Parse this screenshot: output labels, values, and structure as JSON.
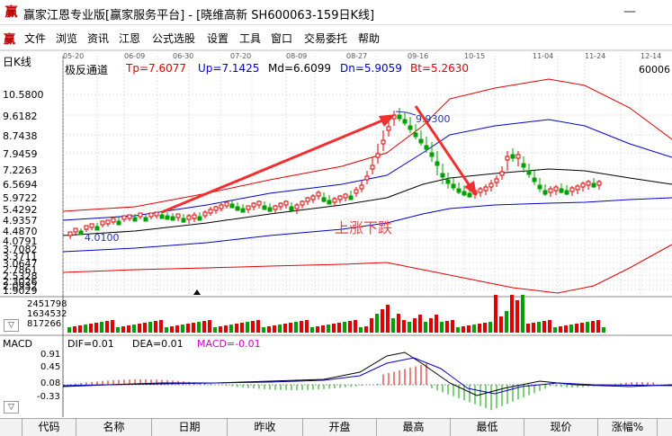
{
  "window": {
    "title": "赢家江恩专业版[赢家服务平台] - [晓维高新  SH600063-159日K线]",
    "minimize_glyph": "—",
    "icon_char": "赢"
  },
  "menu": {
    "icon_char": "赢",
    "items": [
      "文件",
      "浏览",
      "资讯",
      "江恩",
      "公式选股",
      "设置",
      "工具",
      "窗口",
      "交易委托",
      "帮助"
    ]
  },
  "chart": {
    "tab_label": "日K线",
    "indicator_name": "极反通道",
    "indicators": [
      {
        "label": "Tp=7.6077",
        "color": "#e00000"
      },
      {
        "label": "Up=7.1425",
        "color": "#0000cc"
      },
      {
        "label": "Md=6.6099",
        "color": "#000000"
      },
      {
        "label": "Dn=5.9059",
        "color": "#0000cc"
      },
      {
        "label": "Bt=5.2630",
        "color": "#e00000"
      }
    ],
    "right_value": "60006",
    "dates": [
      "05-20",
      "06-09",
      "06-30",
      "07-20",
      "08-09",
      "08-27",
      "09-16",
      "10-15",
      "11-04",
      "11-24",
      "12-14"
    ],
    "price_axis": [
      "10.5800",
      "9.6182",
      "8.7438",
      "7.9459",
      "7.2263",
      "6.5694",
      "5.9722",
      "5.4292",
      "4.9357",
      "4.4870",
      "4.0791",
      "3.7082",
      "3.3711",
      "3.0647",
      "2.7861",
      "2.5328",
      "2.3026",
      "2.0932",
      "1.9029"
    ],
    "peak_label": "9.9300",
    "low_label": "4.0100",
    "annotation": "上涨下跌",
    "colors": {
      "up": "#e00000",
      "down": "#00a000",
      "arrow": "#f03030"
    }
  },
  "volume": {
    "axis": [
      "2451798",
      "1634532",
      "817266"
    ]
  },
  "macd": {
    "title": "MACD",
    "values": [
      {
        "label": "DIF=0.01",
        "color": "#000000"
      },
      {
        "label": "DEA=0.01",
        "color": "#000000"
      },
      {
        "label": "MACD=-0.01",
        "color": "#cc00cc"
      }
    ],
    "axis": [
      "0.91",
      "0.45",
      "0.08",
      "-0.33"
    ]
  },
  "collapse_glyph": "▽",
  "table_header": [
    "代码",
    "名称",
    "日期",
    "昨收",
    "开盘",
    "最高",
    "最低",
    "现价",
    "涨幅%"
  ]
}
